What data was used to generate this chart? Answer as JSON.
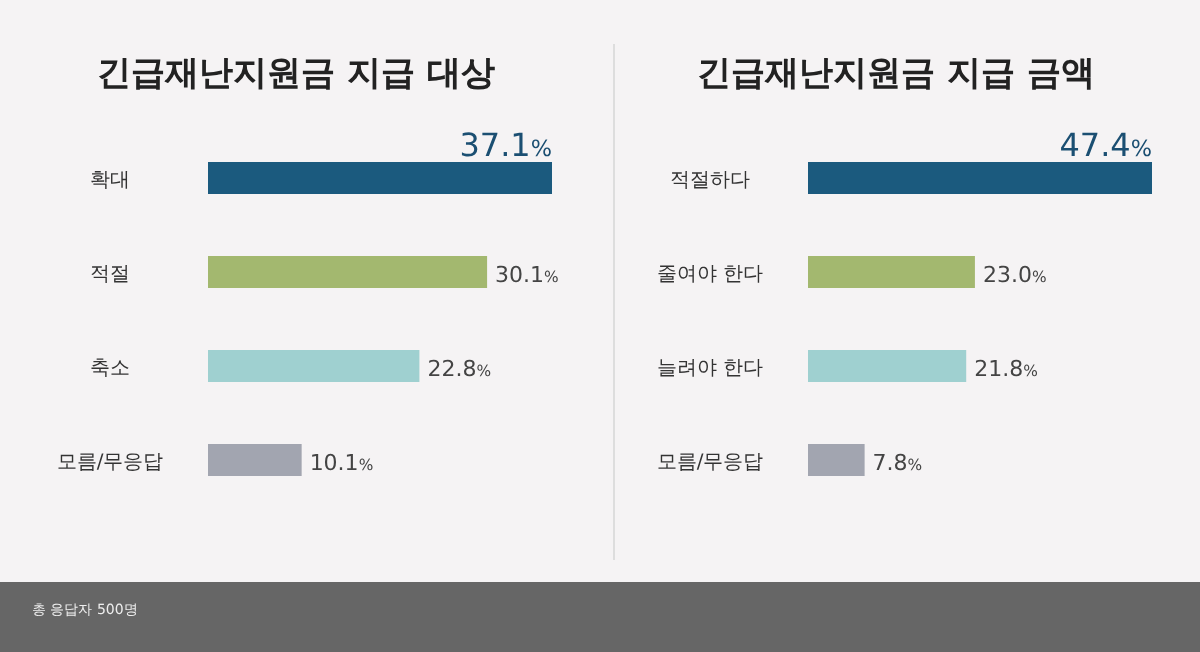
{
  "chart_data": [
    {
      "type": "bar",
      "orientation": "horizontal",
      "title": "긴급재난지원금 지급 대상",
      "categories": [
        "확대",
        "적절",
        "축소",
        "모름/무응답"
      ],
      "values": [
        37.1,
        30.1,
        22.8,
        10.1
      ],
      "colors": [
        "#1b5a7e",
        "#a3b86f",
        "#9fd0d0",
        "#a2a5b0"
      ],
      "value_labels": [
        "37.1%",
        "30.1%",
        "22.8%",
        "10.1%"
      ],
      "annotations": [
        "총 응답자 500명"
      ]
    },
    {
      "type": "bar",
      "orientation": "horizontal",
      "title": "긴급재난지원금 지급 금액",
      "categories": [
        "적절하다",
        "줄여야 한다",
        "늘려야 한다",
        "모름/무응답"
      ],
      "values": [
        47.4,
        23.0,
        21.8,
        7.8
      ],
      "colors": [
        "#1b5a7e",
        "#a3b86f",
        "#9fd0d0",
        "#a2a5b0"
      ],
      "value_labels": [
        "47.4%",
        "23.0%",
        "21.8%",
        "7.8%"
      ]
    }
  ]
}
